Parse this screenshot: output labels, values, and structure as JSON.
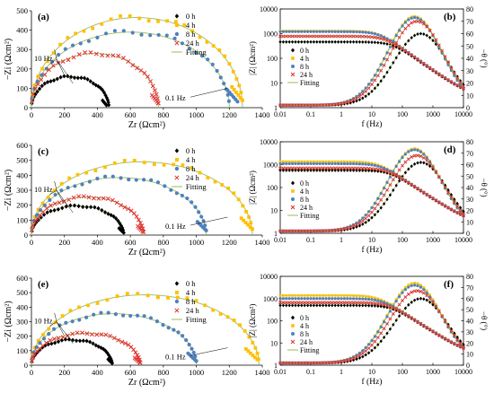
{
  "figure": {
    "colors": {
      "0h": "#000000",
      "4h": "#FFC000",
      "8h": "#4F81BD",
      "24h": "#E03030",
      "fit": "#9BBB59"
    }
  },
  "chart_data": [
    {
      "panel": "(a)",
      "type": "scatter",
      "kind": "nyquist",
      "xlabel": "Zr (Ωcm²)",
      "ylabel": "−Zi (Ωcm²)",
      "xlim": [
        0,
        1400
      ],
      "ylim": [
        0,
        500
      ],
      "xticks": [
        0,
        200,
        400,
        600,
        800,
        1000,
        1200,
        1400
      ],
      "yticks": [
        0,
        100,
        200,
        300,
        400,
        500
      ],
      "legend": [
        "0 h",
        "4 h",
        "8 h",
        "24 h",
        "Fitting"
      ],
      "annotations": [
        "10 Hz",
        "0.1 Hz"
      ],
      "series": [
        {
          "name": "0 h",
          "center": 235,
          "radius": 235,
          "ymax": 160,
          "xend": 455
        },
        {
          "name": "4 h",
          "center": 640,
          "radius": 640,
          "ymax": 465,
          "xend": 1280
        },
        {
          "name": "8 h",
          "center": 600,
          "radius": 600,
          "ymax": 390,
          "xend": 1250
        },
        {
          "name": "24 h",
          "center": 385,
          "radius": 385,
          "ymax": 280,
          "xend": 770
        }
      ]
    },
    {
      "panel": "(b)",
      "type": "line",
      "kind": "bode",
      "xlabel": "f (Hz)",
      "ylabel": "|Z| (Ωcm²)",
      "y2label": "−θ (°)",
      "xlim": [
        0.01,
        10000
      ],
      "ylim": [
        1,
        10000
      ],
      "y2lim": [
        0,
        80
      ],
      "xticks": [
        "0.01",
        "0.1",
        "1",
        "10",
        "100",
        "1000",
        "10000"
      ],
      "yticks": [
        "1",
        "10",
        "100",
        "1000",
        "10000"
      ],
      "y2ticks": [
        "0",
        "10",
        "20",
        "30",
        "40",
        "50",
        "60",
        "70",
        "80"
      ],
      "legend": [
        "0 h",
        "4 h",
        "8 h",
        "24 h",
        "Fitting"
      ],
      "series": [
        {
          "name": "0 h",
          "zlow": 460,
          "zhigh": 2,
          "phasemax": 58,
          "fpeak": 400
        },
        {
          "name": "4 h",
          "zlow": 1280,
          "zhigh": 2,
          "phasemax": 72,
          "fpeak": 250
        },
        {
          "name": "8 h",
          "zlow": 1200,
          "zhigh": 2,
          "phasemax": 71,
          "fpeak": 250
        },
        {
          "name": "24 h",
          "zlow": 780,
          "zhigh": 2,
          "phasemax": 68,
          "fpeak": 300
        }
      ]
    },
    {
      "panel": "(c)",
      "type": "scatter",
      "kind": "nyquist",
      "xlabel": "Zr (Ωcm²)",
      "ylabel": "−Zi (Ωcm²)",
      "xlim": [
        0,
        1400
      ],
      "ylim": [
        0,
        600
      ],
      "xticks": [
        0,
        200,
        400,
        600,
        800,
        1000,
        1200,
        1400
      ],
      "yticks": [
        0,
        100,
        200,
        300,
        400,
        500,
        600
      ],
      "legend": [
        "0 h",
        "4 h",
        "8 h",
        "24 h",
        "Fitting"
      ],
      "annotations": [
        "10 Hz",
        "0.1 Hz"
      ],
      "series": [
        {
          "name": "0 h",
          "center": 280,
          "radius": 280,
          "ymax": 195,
          "xend": 560
        },
        {
          "name": "4 h",
          "center": 670,
          "radius": 670,
          "ymax": 490,
          "xend": 1340
        },
        {
          "name": "8 h",
          "center": 530,
          "radius": 530,
          "ymax": 385,
          "xend": 1060
        },
        {
          "name": "24 h",
          "center": 340,
          "radius": 340,
          "ymax": 255,
          "xend": 680
        }
      ]
    },
    {
      "panel": "(d)",
      "type": "line",
      "kind": "bode",
      "xlabel": "f (Hz)",
      "ylabel": "|Z| (Ωcm²)",
      "y2label": "−θ (°)",
      "xlim": [
        0.01,
        10000
      ],
      "ylim": [
        1,
        10000
      ],
      "y2lim": [
        0,
        80
      ],
      "xticks": [
        "0.01",
        "0.1",
        "1",
        "10",
        "100",
        "1000",
        "10000"
      ],
      "yticks": [
        "1",
        "10",
        "100",
        "1000",
        "10000"
      ],
      "y2ticks": [
        "0",
        "10",
        "20",
        "30",
        "40",
        "50",
        "60",
        "70",
        "80"
      ],
      "legend": [
        "0 h",
        "4 h",
        "8 h",
        "24 h",
        "Fitting"
      ],
      "series": [
        {
          "name": "0 h",
          "zlow": 560,
          "zhigh": 2,
          "phasemax": 60,
          "fpeak": 400
        },
        {
          "name": "4 h",
          "zlow": 1350,
          "zhigh": 2,
          "phasemax": 72,
          "fpeak": 250
        },
        {
          "name": "8 h",
          "zlow": 1100,
          "zhigh": 2,
          "phasemax": 71,
          "fpeak": 250
        },
        {
          "name": "24 h",
          "zlow": 700,
          "zhigh": 2,
          "phasemax": 66,
          "fpeak": 300
        }
      ]
    },
    {
      "panel": "(e)",
      "type": "scatter",
      "kind": "nyquist",
      "xlabel": "Zr (Ωcm²)",
      "ylabel": "−Zi (Ωcm²)",
      "xlim": [
        0,
        1400
      ],
      "ylim": [
        0,
        600
      ],
      "xticks": [
        0,
        200,
        400,
        600,
        800,
        1000,
        1200,
        1400
      ],
      "yticks": [
        0,
        100,
        200,
        300,
        400,
        500,
        600
      ],
      "legend": [
        "0 h",
        "4 h",
        "8 h",
        "24 h",
        "Fitting"
      ],
      "annotations": [
        "10 Hz",
        "0.1 Hz"
      ],
      "series": [
        {
          "name": "0 h",
          "center": 245,
          "radius": 245,
          "ymax": 175,
          "xend": 490
        },
        {
          "name": "4 h",
          "center": 690,
          "radius": 690,
          "ymax": 485,
          "xend": 1370
        },
        {
          "name": "8 h",
          "center": 500,
          "radius": 500,
          "ymax": 355,
          "xend": 1000
        },
        {
          "name": "24 h",
          "center": 330,
          "radius": 330,
          "ymax": 220,
          "xend": 660
        }
      ]
    },
    {
      "panel": "(f)",
      "type": "line",
      "kind": "bode",
      "xlabel": "f (Hz)",
      "ylabel": "|Z| (Ωcm²)",
      "y2label": "−θ (°)",
      "xlim": [
        0.01,
        10000
      ],
      "ylim": [
        1,
        10000
      ],
      "y2lim": [
        0,
        80
      ],
      "xticks": [
        "0.01",
        "0.1",
        "1",
        "10",
        "100",
        "1000",
        "10000"
      ],
      "yticks": [
        "1",
        "10",
        "100",
        "1000",
        "10000"
      ],
      "y2ticks": [
        "0",
        "10",
        "20",
        "30",
        "40",
        "50",
        "60",
        "70",
        "80"
      ],
      "legend": [
        "0 h",
        "4 h",
        "8 h",
        "24 h",
        "Fitting"
      ],
      "series": [
        {
          "name": "0 h",
          "zlow": 490,
          "zhigh": 2,
          "phasemax": 58,
          "fpeak": 400
        },
        {
          "name": "4 h",
          "zlow": 1380,
          "zhigh": 2,
          "phasemax": 72,
          "fpeak": 250
        },
        {
          "name": "8 h",
          "zlow": 1000,
          "zhigh": 2,
          "phasemax": 70,
          "fpeak": 250
        },
        {
          "name": "24 h",
          "zlow": 660,
          "zhigh": 2,
          "phasemax": 65,
          "fpeak": 300
        }
      ]
    }
  ]
}
